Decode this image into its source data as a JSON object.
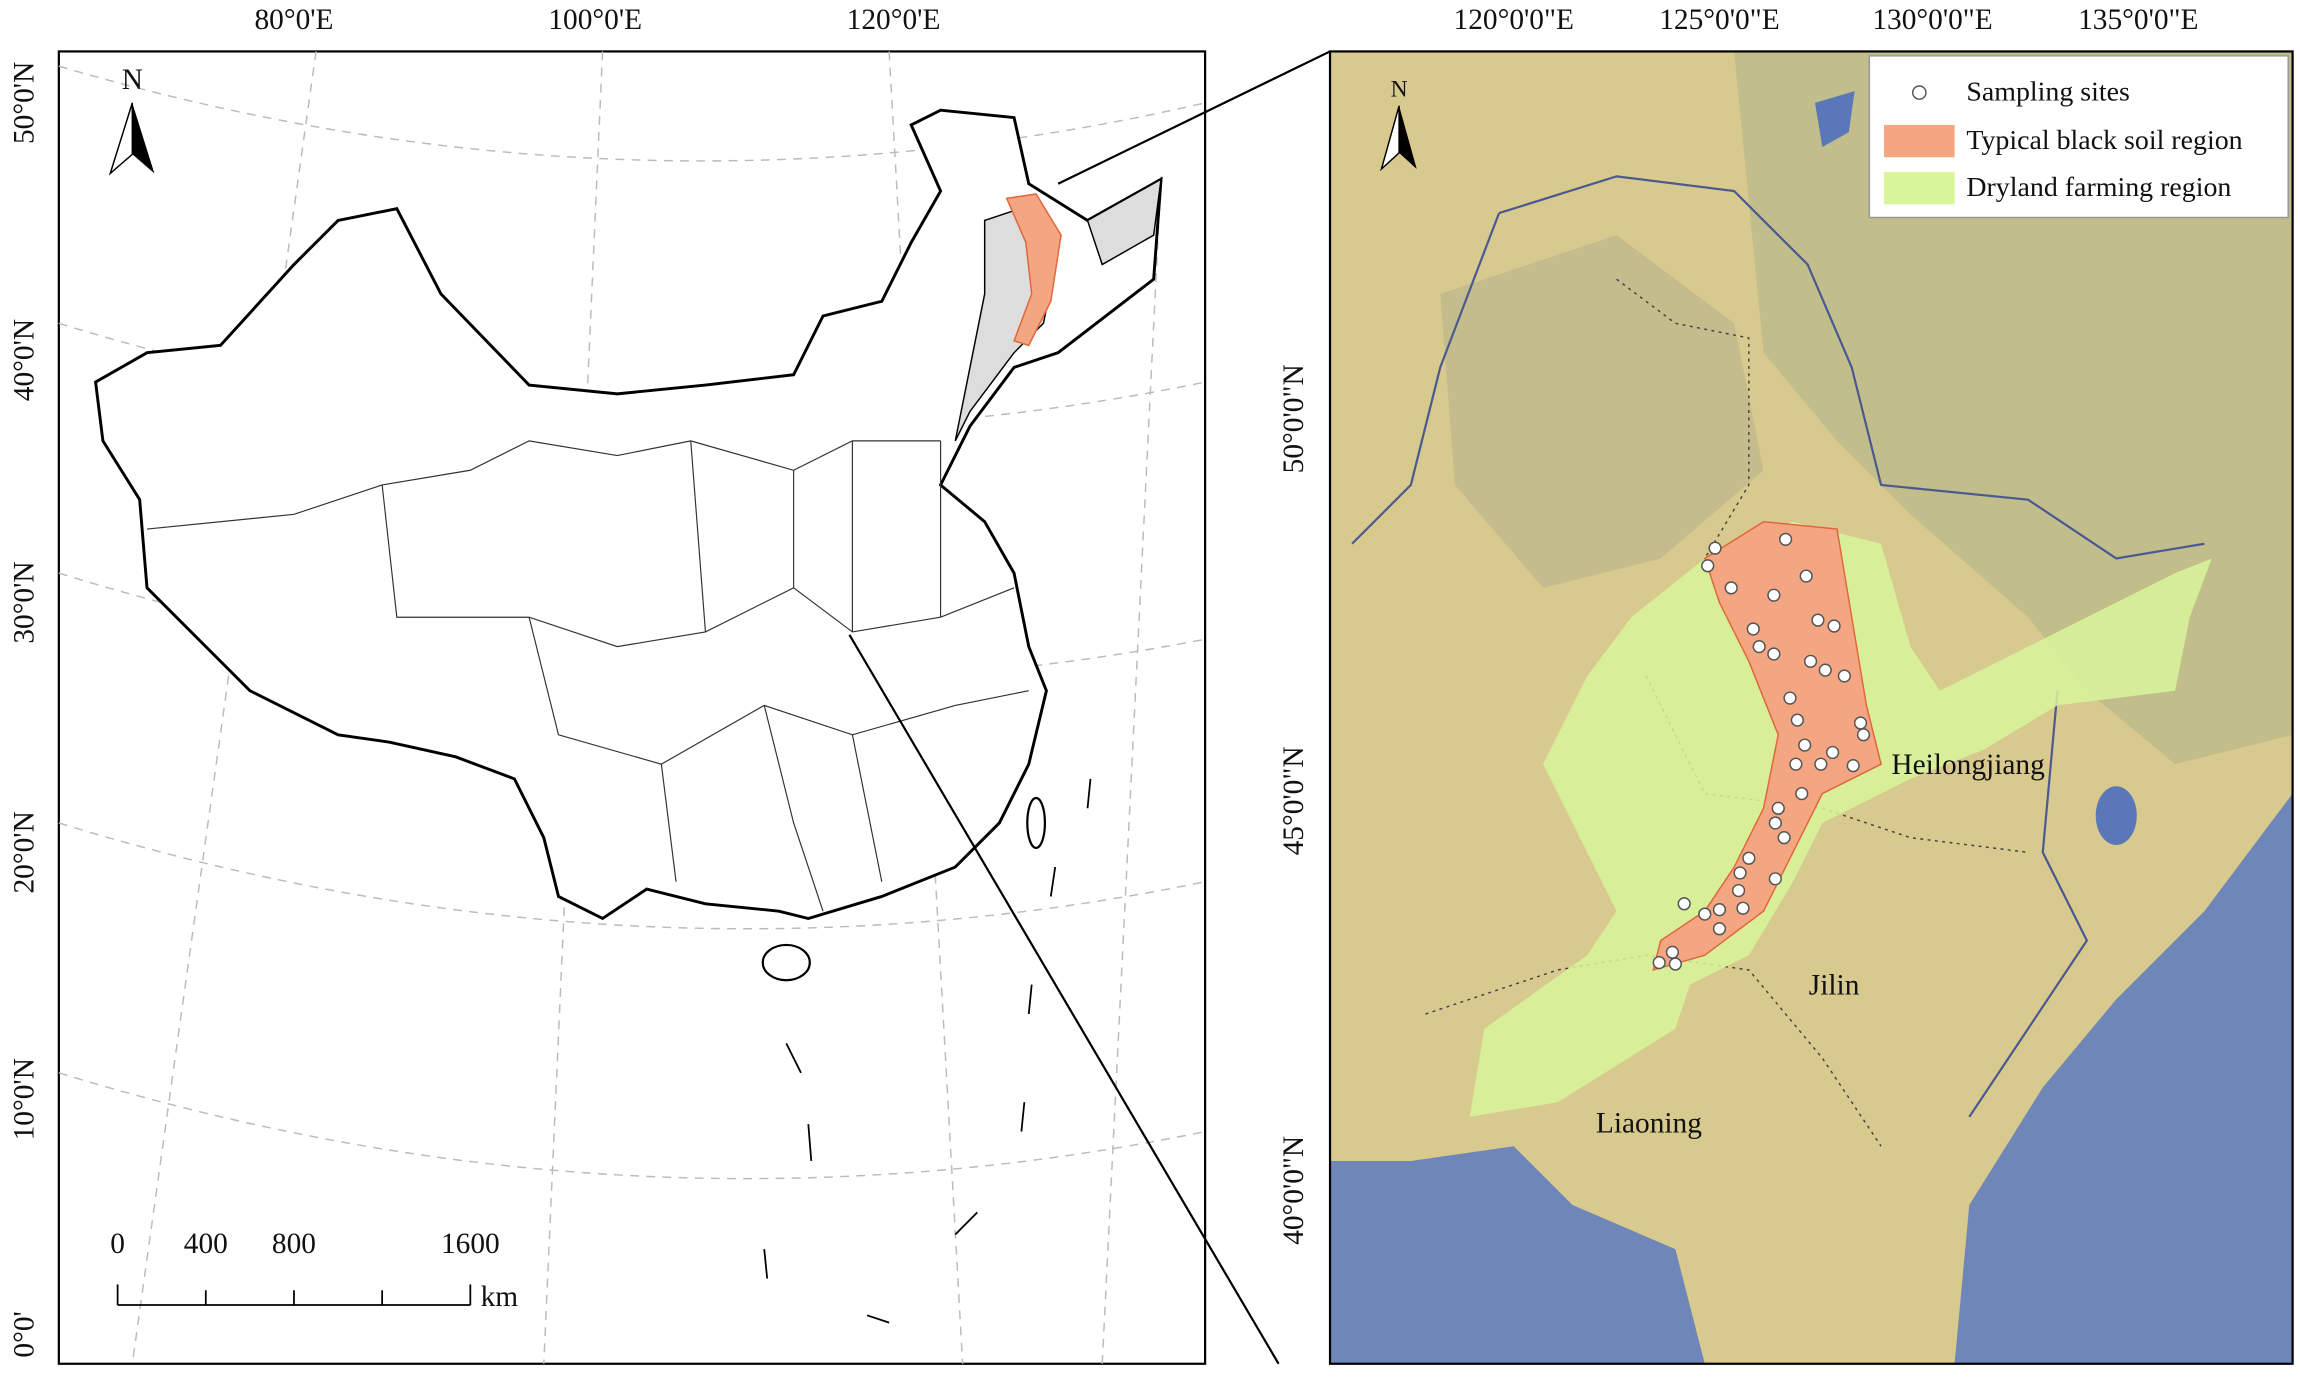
{
  "left_map": {
    "lon_labels": [
      "80°0'E",
      "100°0'E",
      "120°0'E"
    ],
    "lat_labels": [
      "50°0'N",
      "40°0'N",
      "30°0'N",
      "20°0'N",
      "10°0'N",
      "0°0'"
    ],
    "north": "N",
    "scale_bar": {
      "labels": [
        "0",
        "400",
        "800",
        "1600"
      ],
      "unit": "km"
    }
  },
  "right_map": {
    "lon_labels": [
      "120°0'0\"E",
      "125°0'0\"E",
      "130°0'0\"E",
      "135°0'0\"E"
    ],
    "lat_labels": [
      "50°0'0\"N",
      "45°0'0\"N",
      "40°0'0\"N"
    ],
    "north": "N",
    "legend": [
      "Sampling sites",
      "Typical black soil region",
      "Dryland farming region"
    ],
    "regions": [
      "Heilongjiang",
      "Jilin",
      "Liaoning"
    ]
  }
}
